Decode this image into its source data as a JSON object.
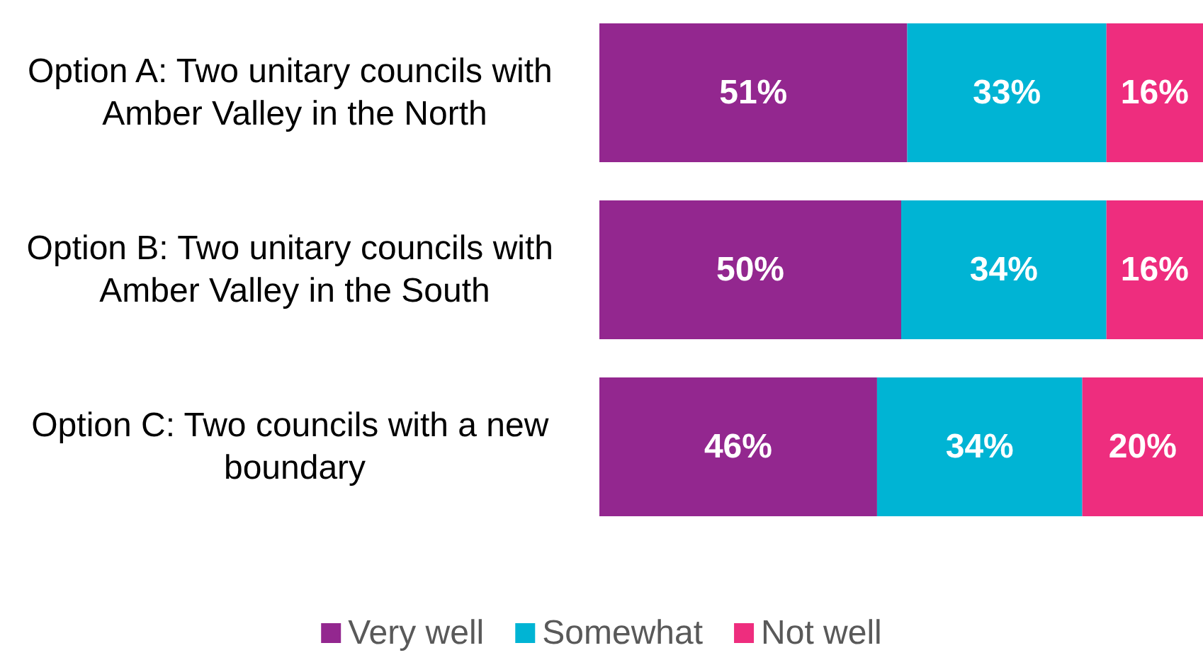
{
  "chart_data": {
    "type": "bar",
    "orientation": "horizontal",
    "stacked": true,
    "categories": [
      "Option A: Two unitary councils with Amber Valley in the North",
      "Option B: Two unitary councils with Amber Valley in the South",
      "Option C: Two councils with a new boundary"
    ],
    "series": [
      {
        "name": "Very well",
        "color": "#93278f",
        "values": [
          51,
          50,
          46
        ],
        "value_labels": [
          "51%",
          "50%",
          "46%"
        ]
      },
      {
        "name": "Somewhat",
        "color": "#00b4d4",
        "values": [
          33,
          34,
          34
        ],
        "value_labels": [
          "33%",
          "34%",
          "34%"
        ]
      },
      {
        "name": "Not well",
        "color": "#ee2d7e",
        "values": [
          16,
          16,
          20
        ],
        "value_labels": [
          "16%",
          "16%",
          "20%"
        ]
      }
    ],
    "tick_labels": "y",
    "legend": "bottom",
    "grid": false
  }
}
